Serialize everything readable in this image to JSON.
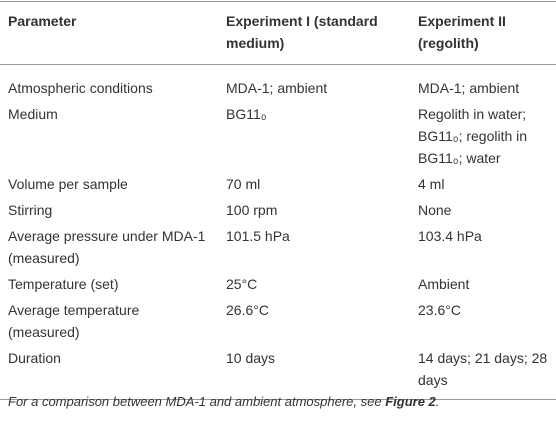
{
  "table": {
    "header": [
      "Parameter",
      "Experiment I (standard medium)",
      "Experiment II (regolith)"
    ],
    "rows": [
      [
        "Atmospheric conditions",
        "MDA-1; ambient",
        "MDA-1; ambient"
      ],
      [
        "Medium",
        "BG11₀",
        "Regolith in water; BG11₀; regolith in BG11₀; water"
      ],
      [
        "Volume per sample",
        "70 ml",
        "4 ml"
      ],
      [
        "Stirring",
        "100 rpm",
        "None"
      ],
      [
        "Average pressure under MDA-1 (measured)",
        "101.5 hPa",
        "103.4 hPa"
      ],
      [
        "Temperature (set)",
        "25°C",
        "Ambient"
      ],
      [
        "Average temperature (measured)",
        "26.6°C",
        "23.6°C"
      ],
      [
        "Duration",
        "10 days",
        "14 days; 21 days; 28 days"
      ]
    ]
  },
  "footnote": {
    "text": "For a comparison between MDA-1 and ambient atmosphere, see ",
    "link": "Figure 2",
    "end": "."
  }
}
